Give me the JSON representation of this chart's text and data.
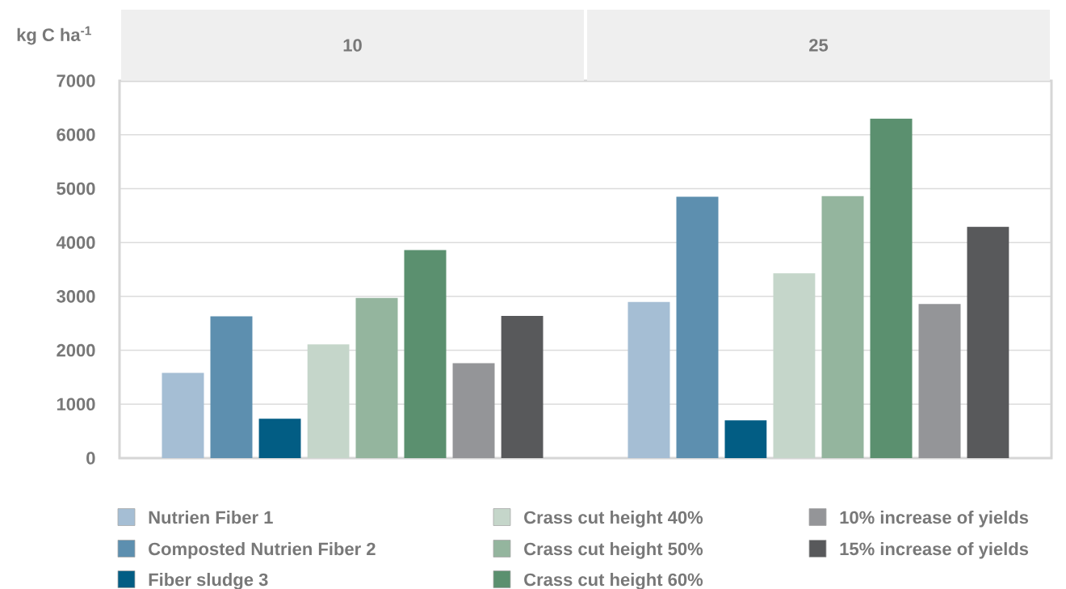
{
  "chart_data": {
    "type": "bar",
    "ylabel": "kg C ha$^{-1}$",
    "categories": [
      "10",
      "25"
    ],
    "series": [
      {
        "name": "Nutrien Fiber 1",
        "color": "#a5bed4",
        "values": [
          1580,
          2900
        ]
      },
      {
        "name": "Composted Nutrien Fiber 2",
        "color": "#5d8faf",
        "values": [
          2630,
          4850
        ]
      },
      {
        "name": "Fiber sludge 3",
        "color": "#025d84",
        "values": [
          730,
          700
        ]
      },
      {
        "name": "Crass cut height 40%",
        "color": "#c5d6ca",
        "values": [
          2110,
          3430
        ]
      },
      {
        "name": "Crass cut height 50%",
        "color": "#94b59e",
        "values": [
          2970,
          4860
        ]
      },
      {
        "name": "Crass cut height 60%",
        "color": "#5b906f",
        "values": [
          3860,
          6300
        ]
      },
      {
        "name": "10% increase of yields",
        "color": "#949598",
        "values": [
          1760,
          2860
        ]
      },
      {
        "name": "15% increase of yields",
        "color": "#58595b",
        "values": [
          2640,
          4290
        ]
      }
    ],
    "ylim": [
      0,
      7000
    ],
    "yticks": [
      0,
      1000,
      2000,
      3000,
      4000,
      5000,
      6000,
      7000
    ],
    "grid": "y",
    "legend": "bottom"
  }
}
